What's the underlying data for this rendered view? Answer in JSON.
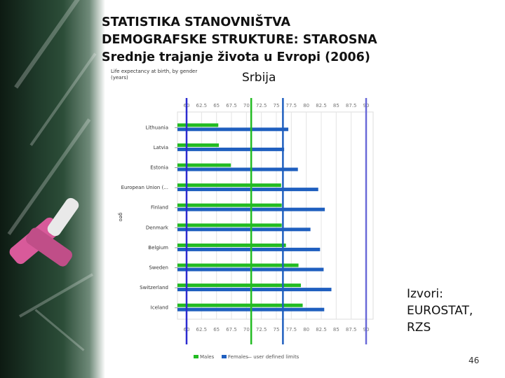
{
  "slide": {
    "title_lines": [
      "STATISTIKA STANOVNIŠTVA",
      "DEMOGRAFSKE STRUKTURE: STAROSNA",
      "Srednje trajanje života u Evropi (2006)"
    ],
    "serbia_label": "Srbija",
    "sources": [
      "Izvori:",
      "EUROSTAT,",
      "RZS"
    ],
    "page_number": "46"
  },
  "chart_data": {
    "type": "bar",
    "orientation": "horizontal",
    "title": "Life expectancy at birth, by gender (years)",
    "ylabel": "geo",
    "categories": [
      "Lithuania",
      "Latvia",
      "Estonia",
      "European Union (...",
      "Finland",
      "Denmark",
      "Belgium",
      "Sweden",
      "Switzerland",
      "Iceland"
    ],
    "series": [
      {
        "name": "Males",
        "color": "#22bb22",
        "values": [
          65.3,
          65.4,
          67.4,
          75.8,
          75.9,
          75.9,
          76.6,
          78.7,
          79.1,
          79.4
        ]
      },
      {
        "name": "Females",
        "color": "#1f5fbf",
        "values": [
          77.0,
          76.3,
          78.6,
          82.0,
          83.1,
          80.7,
          82.3,
          82.9,
          84.2,
          83.0
        ]
      }
    ],
    "xlim": [
      60,
      90
    ],
    "x_ticks": [
      "60",
      "62.5",
      "65",
      "67.5",
      "70",
      "72.5",
      "75",
      "77.5",
      "80",
      "82.5",
      "85",
      "87.5",
      "90"
    ],
    "legend": {
      "position": "bottom",
      "extra": "— user defined limits"
    },
    "reference_lines": [
      {
        "value": 60,
        "color": "#2b2bd0"
      },
      {
        "value": 70.8,
        "color": "#22bb22"
      },
      {
        "value": 76.1,
        "color": "#1f5fbf"
      },
      {
        "value": 90,
        "color": "#6a6ad8"
      }
    ],
    "grid": true
  }
}
